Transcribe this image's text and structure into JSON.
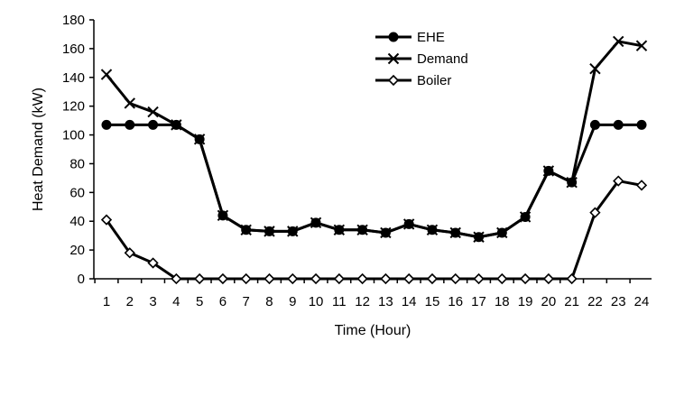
{
  "chart_data": {
    "type": "line",
    "title": "",
    "xlabel": "Time (Hour)",
    "ylabel": "Heat Demand (kW)",
    "ylim": [
      0,
      180
    ],
    "yticks": [
      0,
      20,
      40,
      60,
      80,
      100,
      120,
      140,
      160,
      180
    ],
    "x": [
      1,
      2,
      3,
      4,
      5,
      6,
      7,
      8,
      9,
      10,
      11,
      12,
      13,
      14,
      15,
      16,
      17,
      18,
      19,
      20,
      21,
      22,
      23,
      24
    ],
    "grid": false,
    "legend_position": "top-right",
    "colors": {
      "line": "#000000",
      "background": "#ffffff"
    },
    "series": [
      {
        "name": "EHE",
        "marker": "filled-circle",
        "values": [
          107,
          107,
          107,
          107,
          97,
          44,
          34,
          33,
          33,
          39,
          34,
          34,
          32,
          38,
          34,
          32,
          29,
          32,
          43,
          75,
          67,
          107,
          107,
          107
        ]
      },
      {
        "name": "Demand",
        "marker": "x-cross",
        "values": [
          142,
          122,
          116,
          107,
          97,
          44,
          34,
          33,
          33,
          39,
          34,
          34,
          32,
          38,
          34,
          32,
          29,
          32,
          43,
          75,
          67,
          146,
          165,
          162
        ]
      },
      {
        "name": "Boiler",
        "marker": "open-diamond",
        "values": [
          41,
          18,
          11,
          0,
          0,
          0,
          0,
          0,
          0,
          0,
          0,
          0,
          0,
          0,
          0,
          0,
          0,
          0,
          0,
          0,
          0,
          46,
          68,
          65
        ]
      }
    ]
  }
}
